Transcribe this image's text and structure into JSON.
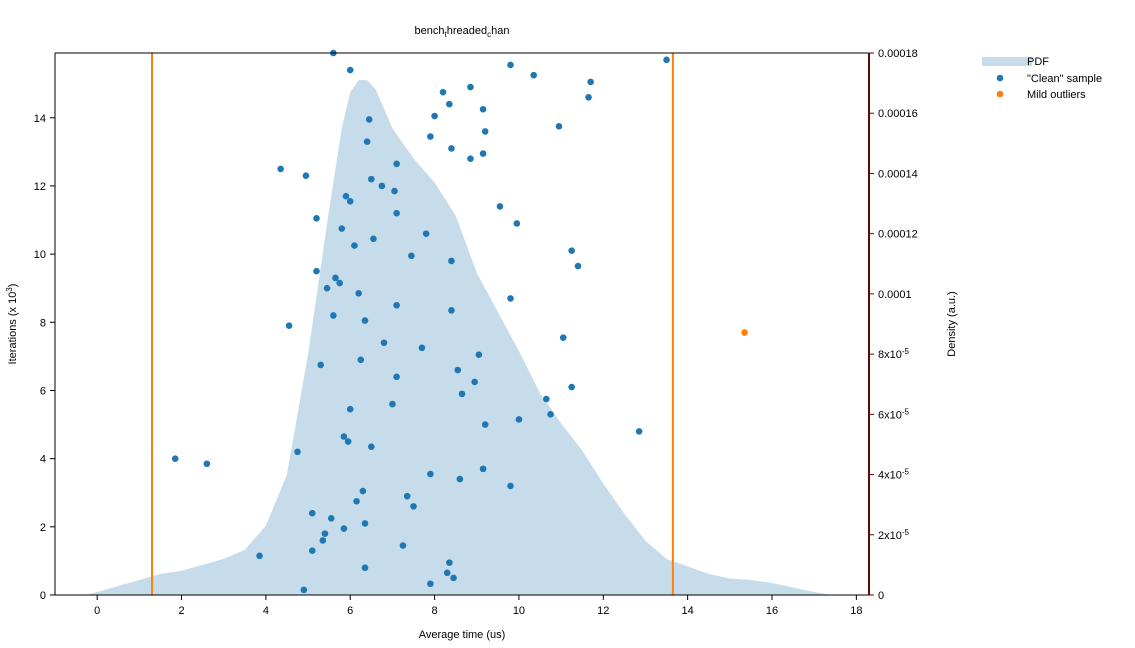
{
  "chart_data": {
    "type": "scatter",
    "title": "bench_threaded_chan",
    "title_main": "bench",
    "title_sub1": "t",
    "title_mid": "hreaded",
    "title_sub2": "c",
    "title_end": "han",
    "xlabel": "Average time (us)",
    "ylabel_left": "Iterations (x 10",
    "ylabel_left_exp": "3",
    "ylabel_left_close": ")",
    "ylabel_right": "Density (a.u.)",
    "xlim": [
      -1,
      18.3
    ],
    "ylim_left": [
      0,
      15.9
    ],
    "ylim_right": [
      0,
      0.00018
    ],
    "x_ticks": [
      "0",
      "2",
      "4",
      "6",
      "8",
      "10",
      "12",
      "14",
      "16",
      "18"
    ],
    "y_left_ticks": [
      "0",
      "2",
      "4",
      "6",
      "8",
      "10",
      "12",
      "14"
    ],
    "y_right_ticks": [
      {
        "base": "0",
        "exp": ""
      },
      {
        "base": "2x10",
        "exp": "-5"
      },
      {
        "base": "4x10",
        "exp": "-5"
      },
      {
        "base": "6x10",
        "exp": "-5"
      },
      {
        "base": "8x10",
        "exp": "-5"
      },
      {
        "base": "0.0001",
        "exp": ""
      },
      {
        "base": "0.00012",
        "exp": ""
      },
      {
        "base": "0.00014",
        "exp": ""
      },
      {
        "base": "0.00016",
        "exp": ""
      },
      {
        "base": "0.00018",
        "exp": ""
      }
    ],
    "legend": {
      "placement": "top-right",
      "entries": [
        "PDF",
        "\"Clean\" sample",
        "Mild outliers"
      ]
    },
    "threshold_lines_x": [
      1.3,
      13.65
    ],
    "series": [
      {
        "name": "PDF",
        "type": "area",
        "x": [
          -0.3,
          0,
          0.5,
          1,
          1.5,
          2,
          2.5,
          3,
          3.5,
          4,
          4.5,
          5,
          5.5,
          5.8,
          6,
          6.2,
          6.4,
          6.6,
          7,
          7.5,
          8,
          8.5,
          9,
          9.5,
          10,
          10.5,
          11,
          11.5,
          12,
          12.5,
          13,
          13.5,
          14,
          14.5,
          15,
          15.5,
          16,
          16.5,
          17,
          17.4
        ],
        "y": [
          0,
          1e-06,
          3e-06,
          5e-06,
          7e-06,
          8e-06,
          1e-05,
          1.2e-05,
          1.5e-05,
          2.3e-05,
          4e-05,
          8e-05,
          0.000128,
          0.000155,
          0.000167,
          0.000171,
          0.000171,
          0.000168,
          0.000155,
          0.000145,
          0.000137,
          0.000126,
          0.000107,
          9.4e-05,
          8.1e-05,
          6.7e-05,
          5.7e-05,
          4.8e-05,
          3.7e-05,
          2.7e-05,
          1.8e-05,
          1.2e-05,
          9.5e-06,
          7e-06,
          5.5e-06,
          5e-06,
          4e-06,
          2.5e-06,
          1e-06,
          0
        ]
      },
      {
        "name": "\"Clean\" sample",
        "type": "scatter",
        "points": [
          [
            5.6,
            15.9
          ],
          [
            6.0,
            15.4
          ],
          [
            9.8,
            15.55
          ],
          [
            10.35,
            15.25
          ],
          [
            11.7,
            15.05
          ],
          [
            13.5,
            15.7
          ],
          [
            8.2,
            14.75
          ],
          [
            8.85,
            14.9
          ],
          [
            11.65,
            14.6
          ],
          [
            8.35,
            14.4
          ],
          [
            9.15,
            14.25
          ],
          [
            8.0,
            14.05
          ],
          [
            6.45,
            13.95
          ],
          [
            10.95,
            13.75
          ],
          [
            9.2,
            13.6
          ],
          [
            7.9,
            13.45
          ],
          [
            6.4,
            13.3
          ],
          [
            8.4,
            13.1
          ],
          [
            9.15,
            12.95
          ],
          [
            8.85,
            12.8
          ],
          [
            7.1,
            12.65
          ],
          [
            4.35,
            12.5
          ],
          [
            4.95,
            12.3
          ],
          [
            6.5,
            12.2
          ],
          [
            6.75,
            12.0
          ],
          [
            7.05,
            11.85
          ],
          [
            5.9,
            11.7
          ],
          [
            6.0,
            11.55
          ],
          [
            9.55,
            11.4
          ],
          [
            7.1,
            11.2
          ],
          [
            5.2,
            11.05
          ],
          [
            9.95,
            10.9
          ],
          [
            5.8,
            10.75
          ],
          [
            7.8,
            10.6
          ],
          [
            6.55,
            10.45
          ],
          [
            6.1,
            10.25
          ],
          [
            11.25,
            10.1
          ],
          [
            7.45,
            9.95
          ],
          [
            8.4,
            9.8
          ],
          [
            11.4,
            9.65
          ],
          [
            5.2,
            9.5
          ],
          [
            5.65,
            9.3
          ],
          [
            5.75,
            9.15
          ],
          [
            5.45,
            9.0
          ],
          [
            6.2,
            8.85
          ],
          [
            9.8,
            8.7
          ],
          [
            7.1,
            8.5
          ],
          [
            8.4,
            8.35
          ],
          [
            5.6,
            8.2
          ],
          [
            6.35,
            8.05
          ],
          [
            4.55,
            7.9
          ],
          [
            11.05,
            7.55
          ],
          [
            6.8,
            7.4
          ],
          [
            7.7,
            7.25
          ],
          [
            9.05,
            7.05
          ],
          [
            6.25,
            6.9
          ],
          [
            5.3,
            6.75
          ],
          [
            8.55,
            6.6
          ],
          [
            7.1,
            6.4
          ],
          [
            8.95,
            6.25
          ],
          [
            11.25,
            6.1
          ],
          [
            8.65,
            5.9
          ],
          [
            10.65,
            5.75
          ],
          [
            7.0,
            5.6
          ],
          [
            6.0,
            5.45
          ],
          [
            10.75,
            5.3
          ],
          [
            10.0,
            5.15
          ],
          [
            9.2,
            5.0
          ],
          [
            12.85,
            4.8
          ],
          [
            5.85,
            4.65
          ],
          [
            5.95,
            4.5
          ],
          [
            6.5,
            4.35
          ],
          [
            4.75,
            4.2
          ],
          [
            1.85,
            4.0
          ],
          [
            2.6,
            3.85
          ],
          [
            9.15,
            3.7
          ],
          [
            7.9,
            3.55
          ],
          [
            8.6,
            3.4
          ],
          [
            9.8,
            3.2
          ],
          [
            6.3,
            3.05
          ],
          [
            7.35,
            2.9
          ],
          [
            6.15,
            2.75
          ],
          [
            7.5,
            2.6
          ],
          [
            5.1,
            2.4
          ],
          [
            5.55,
            2.25
          ],
          [
            6.35,
            2.1
          ],
          [
            5.85,
            1.95
          ],
          [
            5.4,
            1.8
          ],
          [
            5.35,
            1.6
          ],
          [
            7.25,
            1.45
          ],
          [
            5.1,
            1.3
          ],
          [
            3.85,
            1.15
          ],
          [
            8.35,
            0.95
          ],
          [
            6.35,
            0.8
          ],
          [
            8.3,
            0.65
          ],
          [
            8.45,
            0.5
          ],
          [
            7.9,
            0.33
          ],
          [
            4.9,
            0.15
          ]
        ]
      },
      {
        "name": "Mild outliers",
        "type": "scatter",
        "points": [
          [
            15.35,
            7.7
          ]
        ]
      }
    ],
    "colors": {
      "pdf_fill": "#c6dceb",
      "clean": "#1f77b4",
      "outlier": "#ff7f0e",
      "threshold": "#ff7f0e",
      "right_axis": "#5b0a0a",
      "axis": "#000000"
    }
  }
}
